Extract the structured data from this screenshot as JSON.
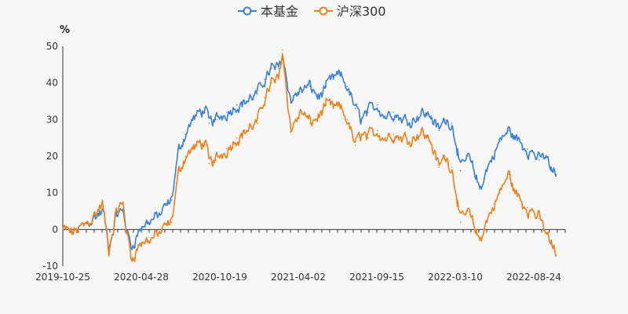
{
  "chart_data": {
    "type": "line",
    "title": "",
    "ylabel": "%",
    "ylim": [
      -10,
      50
    ],
    "yticks": [
      -10,
      0,
      10,
      20,
      30,
      40,
      50
    ],
    "x_tick_labels": [
      "2019-10-25",
      "2020-04-28",
      "2020-10-19",
      "2021-04-02",
      "2021-09-15",
      "2022-03-10",
      "2022-08-24"
    ],
    "legend_position": "top-center",
    "series": [
      {
        "name": "本基金",
        "color": "#3a7fd5",
        "points": [
          [
            "2019-10-25",
            0
          ],
          [
            "2019-11-15",
            -1
          ],
          [
            "2019-12-10",
            1
          ],
          [
            "2020-01-10",
            4
          ],
          [
            "2020-01-22",
            5
          ],
          [
            "2020-02-03",
            -5
          ],
          [
            "2020-02-20",
            4
          ],
          [
            "2020-03-05",
            5
          ],
          [
            "2020-03-23",
            -5
          ],
          [
            "2020-04-10",
            0
          ],
          [
            "2020-04-28",
            2
          ],
          [
            "2020-05-25",
            4
          ],
          [
            "2020-06-20",
            8
          ],
          [
            "2020-07-06",
            22
          ],
          [
            "2020-07-20",
            26
          ],
          [
            "2020-08-05",
            30
          ],
          [
            "2020-09-01",
            33
          ],
          [
            "2020-09-10",
            29
          ],
          [
            "2020-09-25",
            30
          ],
          [
            "2020-10-19",
            32
          ],
          [
            "2020-11-10",
            34
          ],
          [
            "2020-12-01",
            35
          ],
          [
            "2020-12-25",
            37
          ],
          [
            "2021-01-10",
            41
          ],
          [
            "2021-01-25",
            44
          ],
          [
            "2021-02-10",
            44
          ],
          [
            "2021-02-18",
            48
          ],
          [
            "2021-03-09",
            35
          ],
          [
            "2021-03-20",
            37
          ],
          [
            "2021-04-02",
            38
          ],
          [
            "2021-04-20",
            39
          ],
          [
            "2021-05-10",
            36
          ],
          [
            "2021-05-25",
            39
          ],
          [
            "2021-06-10",
            41
          ],
          [
            "2021-06-25",
            42
          ],
          [
            "2021-07-10",
            39
          ],
          [
            "2021-07-28",
            33
          ],
          [
            "2021-08-10",
            30
          ],
          [
            "2021-08-25",
            32
          ],
          [
            "2021-09-15",
            34
          ],
          [
            "2021-10-01",
            31
          ],
          [
            "2021-10-20",
            32
          ],
          [
            "2021-11-10",
            30
          ],
          [
            "2021-12-01",
            30
          ],
          [
            "2021-12-20",
            32
          ],
          [
            "2022-01-10",
            31
          ],
          [
            "2022-01-28",
            27
          ],
          [
            "2022-02-10",
            30
          ],
          [
            "2022-02-25",
            29
          ],
          [
            "2022-03-10",
            22
          ],
          [
            "2022-03-16",
            16
          ],
          [
            "2022-04-01",
            20
          ],
          [
            "2022-04-20",
            14
          ],
          [
            "2022-04-27",
            11
          ],
          [
            "2022-05-15",
            17
          ],
          [
            "2022-06-10",
            24
          ],
          [
            "2022-06-30",
            27
          ],
          [
            "2022-07-15",
            25
          ],
          [
            "2022-07-30",
            23
          ],
          [
            "2022-08-10",
            22
          ],
          [
            "2022-08-24",
            21
          ],
          [
            "2022-09-05",
            19
          ],
          [
            "2022-09-20",
            20
          ],
          [
            "2022-10-01",
            16
          ],
          [
            "2022-10-12",
            15
          ]
        ]
      },
      {
        "name": "沪深300",
        "color": "#f57f17",
        "points": [
          [
            "2019-10-25",
            0
          ],
          [
            "2019-11-15",
            -1
          ],
          [
            "2019-12-10",
            1
          ],
          [
            "2020-01-10",
            5
          ],
          [
            "2020-01-20",
            7
          ],
          [
            "2020-02-03",
            -6
          ],
          [
            "2020-02-20",
            5
          ],
          [
            "2020-03-05",
            7
          ],
          [
            "2020-03-23",
            -8
          ],
          [
            "2020-04-10",
            -4
          ],
          [
            "2020-04-28",
            -3
          ],
          [
            "2020-05-25",
            -1
          ],
          [
            "2020-06-20",
            2
          ],
          [
            "2020-07-06",
            16
          ],
          [
            "2020-07-20",
            20
          ],
          [
            "2020-08-05",
            22
          ],
          [
            "2020-09-01",
            24
          ],
          [
            "2020-09-10",
            18
          ],
          [
            "2020-09-25",
            19
          ],
          [
            "2020-10-19",
            22
          ],
          [
            "2020-11-10",
            25
          ],
          [
            "2020-12-01",
            27
          ],
          [
            "2020-12-25",
            29
          ],
          [
            "2021-01-10",
            36
          ],
          [
            "2021-01-25",
            40
          ],
          [
            "2021-02-10",
            41
          ],
          [
            "2021-02-18",
            49
          ],
          [
            "2021-03-09",
            27
          ],
          [
            "2021-03-20",
            30
          ],
          [
            "2021-04-02",
            32
          ],
          [
            "2021-04-20",
            29
          ],
          [
            "2021-05-10",
            31
          ],
          [
            "2021-05-25",
            34
          ],
          [
            "2021-06-10",
            33
          ],
          [
            "2021-06-25",
            33
          ],
          [
            "2021-07-10",
            30
          ],
          [
            "2021-07-28",
            23
          ],
          [
            "2021-08-10",
            26
          ],
          [
            "2021-08-25",
            25
          ],
          [
            "2021-09-15",
            27
          ],
          [
            "2021-10-01",
            25
          ],
          [
            "2021-10-20",
            26
          ],
          [
            "2021-11-10",
            25
          ],
          [
            "2021-12-01",
            25
          ],
          [
            "2021-12-20",
            27
          ],
          [
            "2022-01-10",
            24
          ],
          [
            "2022-01-28",
            17
          ],
          [
            "2022-02-10",
            20
          ],
          [
            "2022-02-25",
            17
          ],
          [
            "2022-03-10",
            8
          ],
          [
            "2022-03-16",
            2
          ],
          [
            "2022-04-01",
            5
          ],
          [
            "2022-04-20",
            -1
          ],
          [
            "2022-04-27",
            -3
          ],
          [
            "2022-05-15",
            3
          ],
          [
            "2022-06-10",
            10
          ],
          [
            "2022-06-30",
            15
          ],
          [
            "2022-07-15",
            10
          ],
          [
            "2022-07-30",
            7
          ],
          [
            "2022-08-10",
            6
          ],
          [
            "2022-08-24",
            5
          ],
          [
            "2022-09-05",
            3
          ],
          [
            "2022-09-20",
            -1
          ],
          [
            "2022-10-01",
            -4
          ],
          [
            "2022-10-12",
            -7
          ]
        ]
      }
    ]
  }
}
